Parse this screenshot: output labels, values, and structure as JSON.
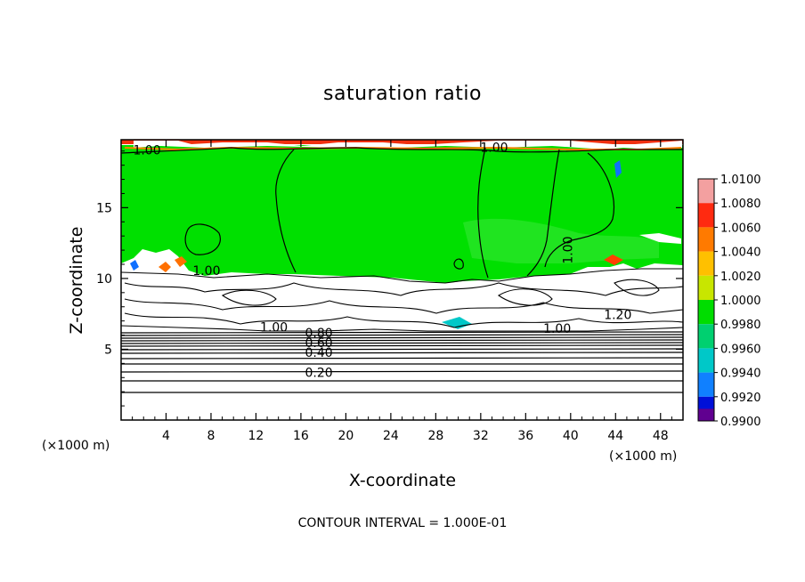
{
  "chart_data": {
    "type": "heatmap",
    "title": "saturation ratio",
    "xlabel": "X-coordinate",
    "ylabel": "Z-coordinate",
    "x_unit_label": "(×1000 m)",
    "z_unit_label": "(×1000 m)",
    "xlim": [
      0,
      50
    ],
    "ylim": [
      0,
      19.8
    ],
    "x_ticks": [
      4,
      8,
      12,
      16,
      20,
      24,
      28,
      32,
      36,
      40,
      44,
      48
    ],
    "y_ticks": [
      5,
      10,
      15
    ],
    "colorbar": {
      "levels": [
        1.01,
        1.008,
        1.006,
        1.004,
        1.002,
        1.0,
        0.998,
        0.996,
        0.994,
        0.992,
        0.99
      ],
      "labels": [
        "1.0100",
        "1.0080",
        "1.0060",
        "1.0040",
        "1.0020",
        "1.0000",
        "0.9980",
        "0.9960",
        "0.9940",
        "0.9920",
        "0.9900"
      ],
      "colors": [
        "#f3a0a0",
        "#ff2a10",
        "#ff7a00",
        "#ffc000",
        "#c8e600",
        "#00dd00",
        "#00d070",
        "#00c8c8",
        "#1080ff",
        "#0010d8",
        "#600090"
      ]
    },
    "contour_labels": [
      {
        "text": "1.00",
        "x": 2.3,
        "z": 19.0
      },
      {
        "text": "1.00",
        "x": 33.2,
        "z": 19.2
      },
      {
        "text": "1.00",
        "x": 39.8,
        "z": 12.0
      },
      {
        "text": "1.00",
        "x": 7.6,
        "z": 10.5
      },
      {
        "text": "1.00",
        "x": 13.6,
        "z": 6.5
      },
      {
        "text": "1.00",
        "x": 38.8,
        "z": 6.4
      },
      {
        "text": "1.20",
        "x": 44.2,
        "z": 7.4
      },
      {
        "text": "0.80",
        "x": 17.6,
        "z": 6.1
      },
      {
        "text": "0.60",
        "x": 17.6,
        "z": 5.4
      },
      {
        "text": "0.40",
        "x": 17.6,
        "z": 4.7
      },
      {
        "text": "0.20",
        "x": 17.6,
        "z": 3.3
      }
    ],
    "contour_interval": "CONTOUR INTERVAL = 1.000E-01",
    "grid": false,
    "legend_position": "right"
  },
  "colors": {
    "supersaturated_green": "#00e000",
    "background": "#ffffff"
  }
}
